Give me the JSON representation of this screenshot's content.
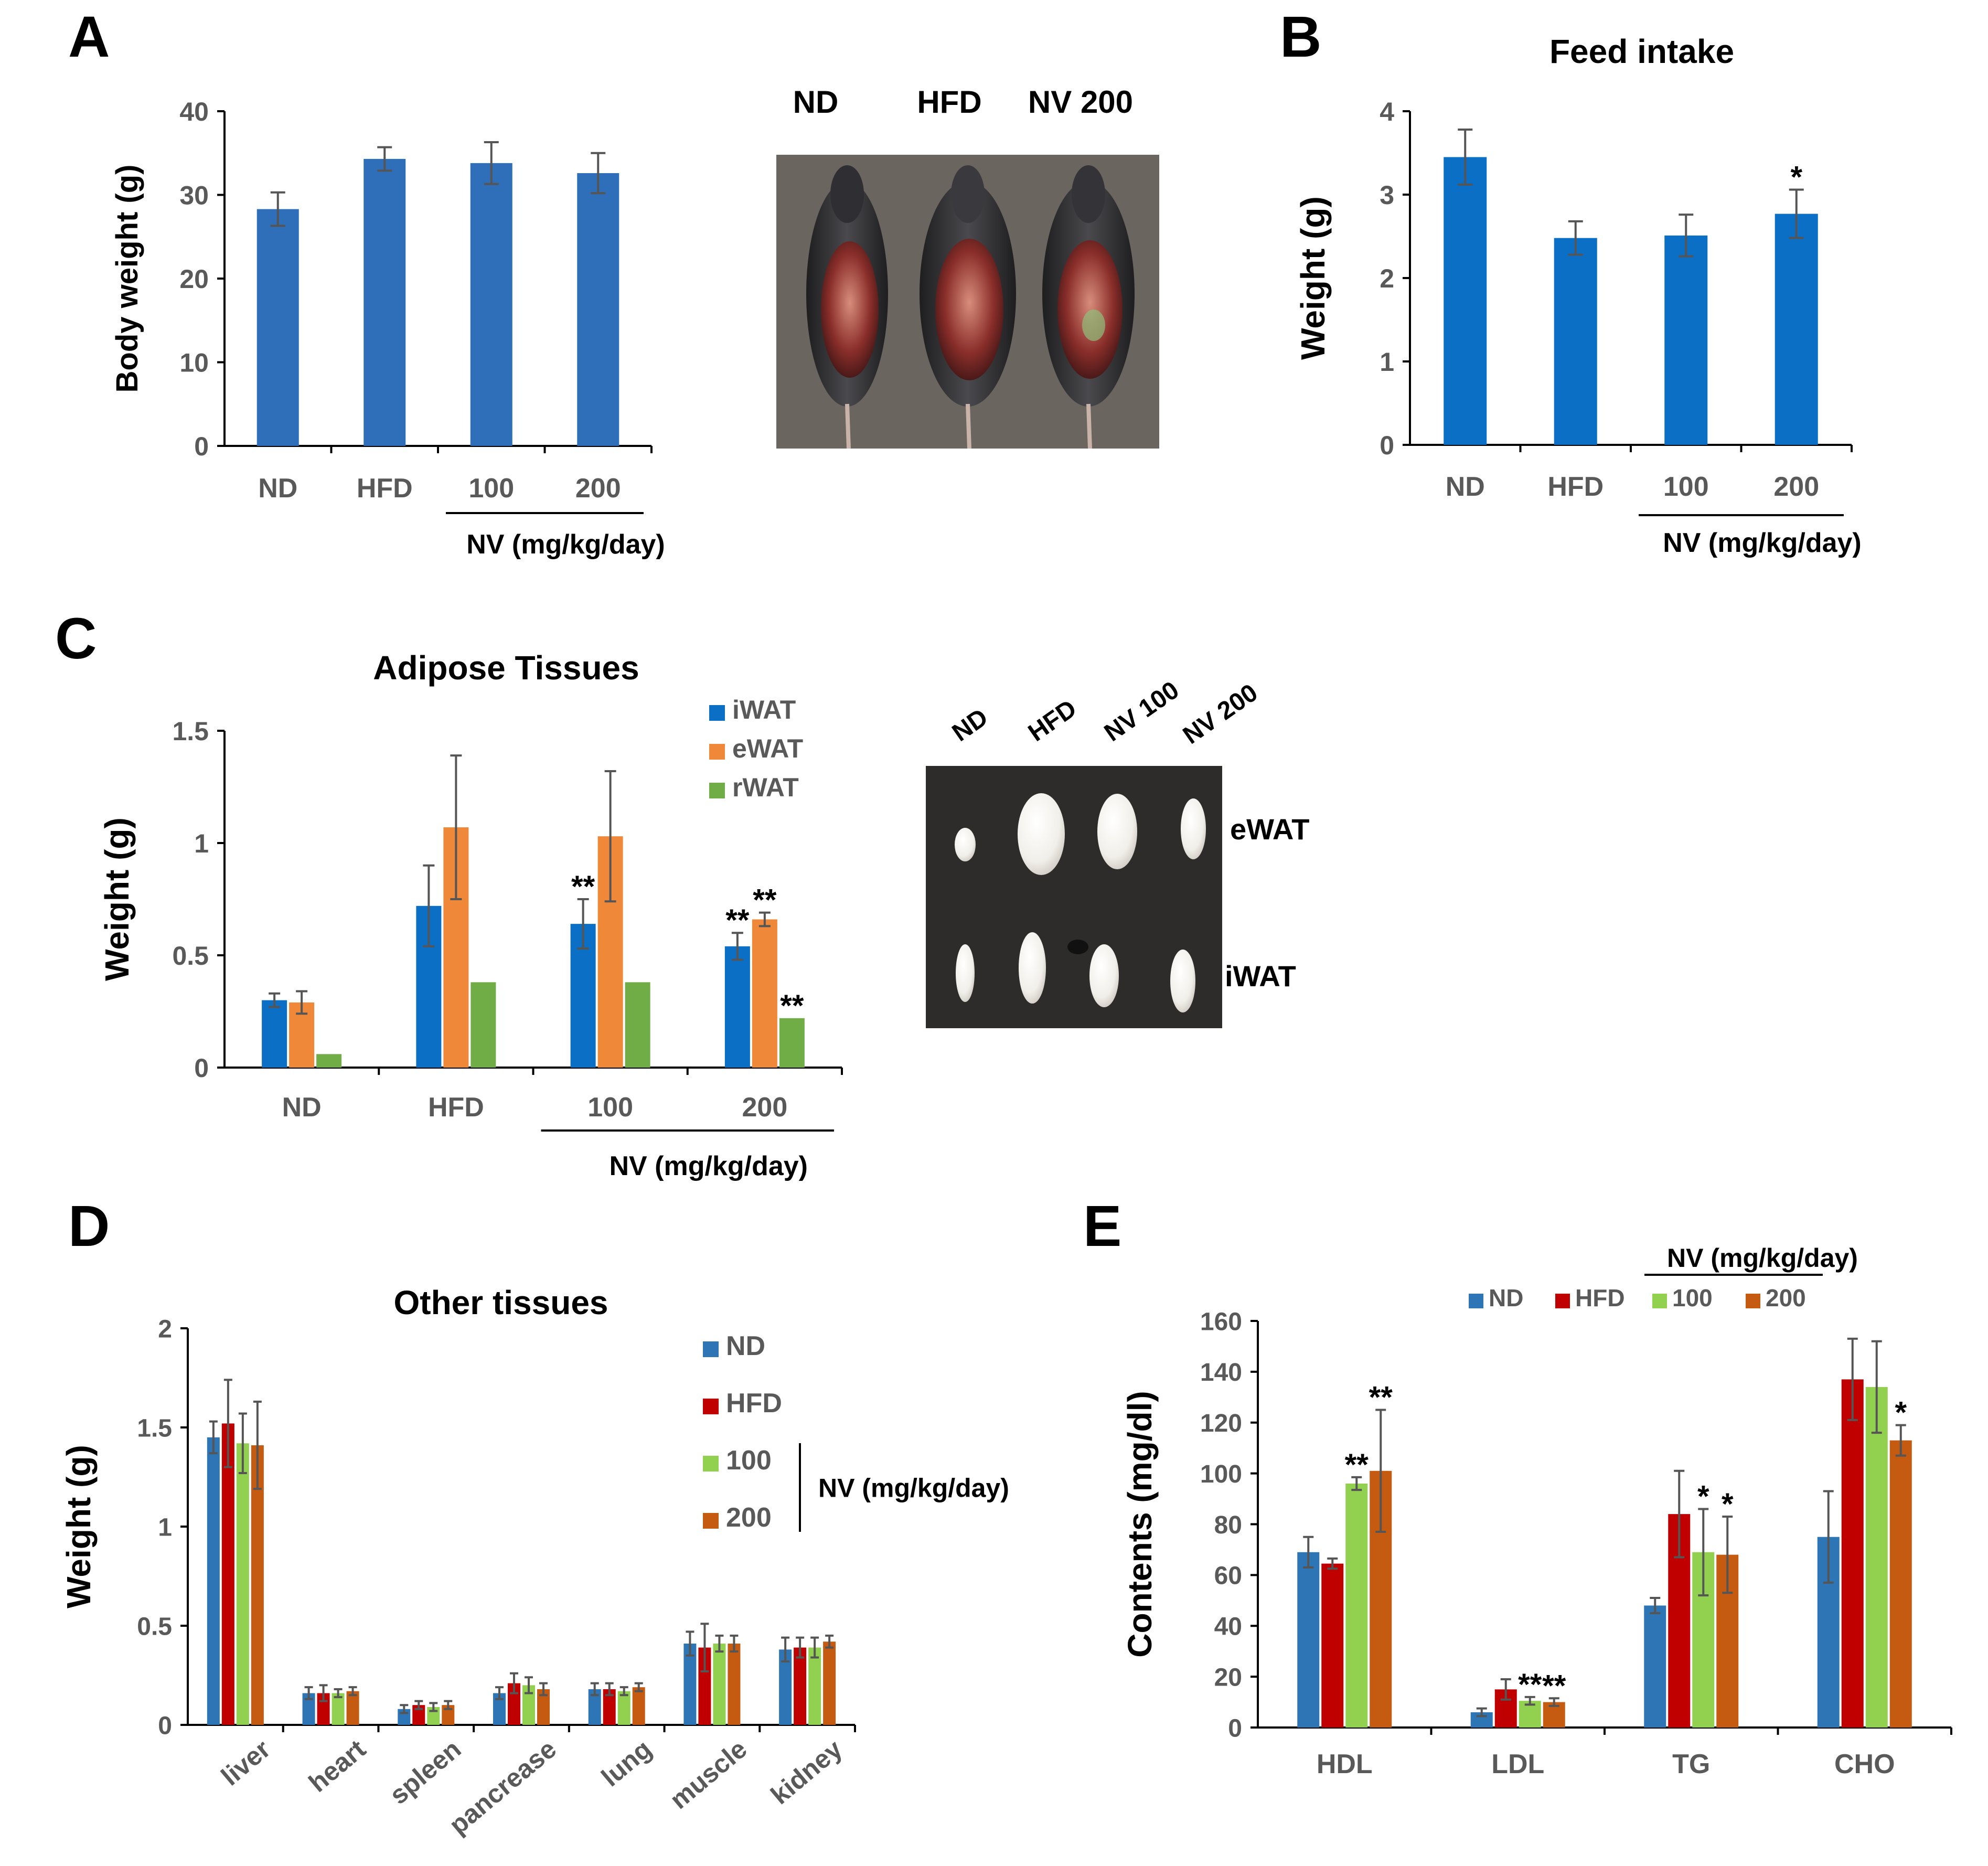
{
  "panel_letters": {
    "A": "A",
    "B": "B",
    "C": "C",
    "D": "D",
    "E": "E"
  },
  "colors": {
    "blue": "#2f6eb9",
    "blue_b": "#0b6fc5",
    "orange": "#f0883a",
    "green": "#70ad47",
    "nd": "#2e75b6",
    "hfd": "#c00000",
    "nv100": "#92d050",
    "nv200": "#c55a11",
    "axis": "#000000",
    "error_bar": "#555555",
    "tick_text": "#595959",
    "text": "#000000"
  },
  "photo_A": {
    "labels": [
      "ND",
      "HFD",
      "NV 200"
    ]
  },
  "photo_C": {
    "column_labels": [
      "ND",
      "HFD",
      "NV 100",
      "NV 200"
    ],
    "row_labels": [
      "eWAT",
      "iWAT"
    ]
  },
  "chart_data": [
    {
      "id": "A",
      "type": "bar",
      "title": "",
      "xlabel": "",
      "ylabel": "Body weight (g)",
      "ylim": [
        0,
        40
      ],
      "yticks": [
        0,
        10,
        20,
        30,
        40
      ],
      "categories": [
        "ND",
        "HFD",
        "100",
        "200"
      ],
      "series": [
        {
          "color": "#2f6eb9",
          "values": [
            28.3,
            34.3,
            33.8,
            32.6
          ],
          "errors": [
            2.0,
            1.4,
            2.5,
            2.4
          ],
          "marks": [
            "",
            "",
            "",
            ""
          ]
        }
      ],
      "group_label": "NV (mg/kg/day)",
      "group_span": [
        2,
        3
      ]
    },
    {
      "id": "B",
      "type": "bar",
      "title": "Feed intake",
      "xlabel": "",
      "ylabel": "Weight (g)",
      "ylim": [
        0,
        4
      ],
      "yticks": [
        0,
        1,
        2,
        3,
        4
      ],
      "categories": [
        "ND",
        "HFD",
        "100",
        "200"
      ],
      "series": [
        {
          "color": "#0b6fc5",
          "values": [
            3.45,
            2.48,
            2.51,
            2.77
          ],
          "errors": [
            0.33,
            0.2,
            0.25,
            0.29
          ],
          "marks": [
            "",
            "",
            "",
            "*"
          ]
        }
      ],
      "group_label": "NV (mg/kg/day)",
      "group_span": [
        2,
        3
      ]
    },
    {
      "id": "C",
      "type": "bar",
      "title": "Adipose Tissues",
      "xlabel": "",
      "ylabel": "Weight (g)",
      "ylim": [
        0,
        1.5
      ],
      "yticks": [
        0,
        0.5,
        1,
        1.5
      ],
      "ytick_labels": [
        "0",
        "0.5",
        "1",
        "1.5"
      ],
      "categories": [
        "ND",
        "HFD",
        "100",
        "200"
      ],
      "series": [
        {
          "name": "iWAT",
          "color": "#0b6fc5",
          "values": [
            0.3,
            0.72,
            0.64,
            0.54
          ],
          "errors": [
            0.03,
            0.18,
            0.11,
            0.06
          ],
          "marks": [
            "",
            "",
            "**",
            "**"
          ]
        },
        {
          "name": "eWAT",
          "color": "#f0883a",
          "values": [
            0.29,
            1.07,
            1.03,
            0.66
          ],
          "errors": [
            0.05,
            0.32,
            0.29,
            0.03
          ],
          "marks": [
            "",
            "",
            "",
            "**"
          ]
        },
        {
          "name": "rWAT",
          "color": "#70ad47",
          "values": [
            0.06,
            0.38,
            0.38,
            0.22
          ],
          "errors": [
            0,
            0,
            0,
            0
          ],
          "marks": [
            "",
            "",
            "",
            "**"
          ]
        }
      ],
      "legend_position": "top-right",
      "group_label": "NV (mg/kg/day)",
      "group_span": [
        2,
        3
      ]
    },
    {
      "id": "D",
      "type": "bar",
      "title": "Other tissues",
      "xlabel": "",
      "ylabel": "Weight (g)",
      "ylim": [
        0,
        2
      ],
      "yticks": [
        0,
        0.5,
        1,
        1.5,
        2
      ],
      "ytick_labels": [
        "0",
        "0.5",
        "1",
        "1.5",
        "2"
      ],
      "categories": [
        "liver",
        "heart",
        "spleen",
        "pancrease",
        "lung",
        "muscle",
        "kidney"
      ],
      "series": [
        {
          "name": "ND",
          "color": "#2e75b6",
          "values": [
            1.45,
            0.16,
            0.08,
            0.16,
            0.18,
            0.41,
            0.38
          ],
          "errors": [
            0.08,
            0.03,
            0.02,
            0.03,
            0.03,
            0.06,
            0.06
          ],
          "marks": []
        },
        {
          "name": "HFD",
          "color": "#c00000",
          "values": [
            1.52,
            0.16,
            0.1,
            0.21,
            0.18,
            0.39,
            0.39
          ],
          "errors": [
            0.22,
            0.04,
            0.02,
            0.05,
            0.03,
            0.12,
            0.05
          ],
          "marks": []
        },
        {
          "name": "100",
          "color": "#92d050",
          "values": [
            1.42,
            0.16,
            0.09,
            0.2,
            0.17,
            0.41,
            0.39
          ],
          "errors": [
            0.15,
            0.02,
            0.02,
            0.04,
            0.02,
            0.04,
            0.05
          ],
          "marks": []
        },
        {
          "name": "200",
          "color": "#c55a11",
          "values": [
            1.41,
            0.17,
            0.1,
            0.18,
            0.19,
            0.41,
            0.42
          ],
          "errors": [
            0.22,
            0.02,
            0.02,
            0.03,
            0.02,
            0.04,
            0.03
          ],
          "marks": []
        }
      ],
      "legend_position": "right",
      "legend_group_label": "NV (mg/kg/day)"
    },
    {
      "id": "E",
      "type": "bar",
      "title": "",
      "xlabel": "",
      "ylabel": "Contents (mg/dl)",
      "ylim": [
        0,
        160
      ],
      "yticks": [
        0,
        20,
        40,
        60,
        80,
        100,
        120,
        140,
        160
      ],
      "categories": [
        "HDL",
        "LDL",
        "TG",
        "CHO"
      ],
      "series": [
        {
          "name": "ND",
          "color": "#2e75b6",
          "values": [
            69,
            6,
            48,
            75
          ],
          "errors": [
            6,
            1.5,
            3,
            18
          ],
          "marks": [
            "",
            "",
            "",
            ""
          ]
        },
        {
          "name": "HFD",
          "color": "#c00000",
          "values": [
            64.5,
            15,
            84,
            137
          ],
          "errors": [
            2,
            4,
            17,
            16
          ],
          "marks": [
            "",
            "",
            "",
            ""
          ]
        },
        {
          "name": "100",
          "color": "#92d050",
          "values": [
            96,
            10.5,
            69,
            134
          ],
          "errors": [
            2.5,
            1.5,
            17,
            18
          ],
          "marks": [
            "**",
            "**",
            "*",
            ""
          ]
        },
        {
          "name": "200",
          "color": "#c55a11",
          "values": [
            101,
            10,
            68,
            113
          ],
          "errors": [
            24,
            1.5,
            15,
            6
          ],
          "marks": [
            "**",
            "**",
            "*",
            "*"
          ]
        }
      ],
      "legend_position": "top",
      "legend_group_label": "NV (mg/kg/day)"
    }
  ]
}
